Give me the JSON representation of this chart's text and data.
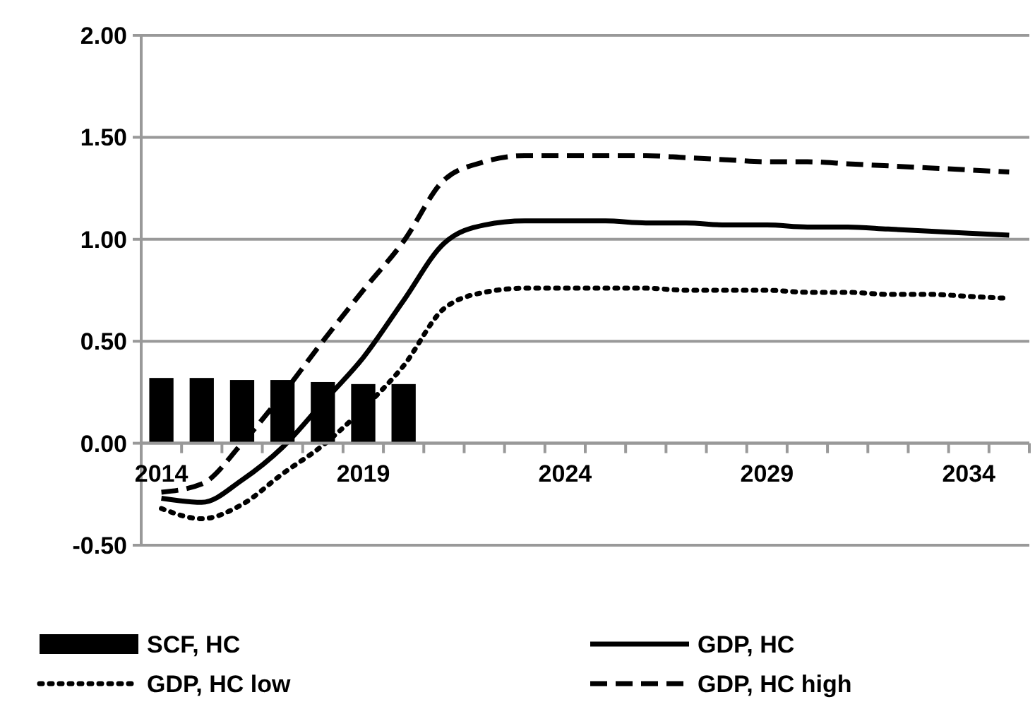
{
  "chart_data": {
    "type": "line",
    "categories": [
      "2014",
      null,
      null,
      null,
      null,
      "2019",
      null,
      null,
      null,
      null,
      "2024",
      null,
      null,
      null,
      null,
      "2029",
      null,
      null,
      null,
      null,
      "2034",
      null
    ],
    "series": [
      {
        "name": "SCF, HC",
        "type": "bar",
        "color": "#000000",
        "values": [
          0.32,
          0.32,
          0.31,
          0.31,
          0.3,
          0.29,
          0.29,
          null,
          null,
          null,
          null,
          null,
          null,
          null,
          null,
          null,
          null,
          null,
          null,
          null,
          null,
          null
        ]
      },
      {
        "name": "GDP, HC",
        "color": "#000000",
        "line_style": "solid",
        "values": [
          -0.27,
          -0.29,
          -0.18,
          -0.02,
          0.2,
          0.42,
          0.7,
          0.98,
          1.07,
          1.09,
          1.09,
          1.09,
          1.08,
          1.08,
          1.07,
          1.07,
          1.06,
          1.06,
          1.05,
          1.04,
          1.03,
          1.02
        ]
      },
      {
        "name": "GDP, HC low",
        "color": "#000000",
        "line_style": "dotted",
        "values": [
          -0.32,
          -0.37,
          -0.3,
          -0.15,
          -0.01,
          0.17,
          0.38,
          0.66,
          0.74,
          0.76,
          0.76,
          0.76,
          0.76,
          0.75,
          0.75,
          0.75,
          0.74,
          0.74,
          0.73,
          0.73,
          0.72,
          0.71
        ]
      },
      {
        "name": "GDP, HC high",
        "color": "#000000",
        "line_style": "dashed",
        "values": [
          -0.24,
          -0.2,
          0.0,
          0.24,
          0.5,
          0.75,
          0.99,
          1.29,
          1.38,
          1.41,
          1.41,
          1.41,
          1.41,
          1.4,
          1.39,
          1.38,
          1.38,
          1.37,
          1.36,
          1.35,
          1.34,
          1.33
        ]
      }
    ],
    "ylim": [
      -0.5,
      2.0
    ],
    "yticks": [
      {
        "value": -0.5,
        "label": "-0.50"
      },
      {
        "value": 0,
        "label": "0.00"
      },
      {
        "value": 0.5,
        "label": "0.50"
      },
      {
        "value": 1,
        "label": "1.00"
      },
      {
        "value": 1.5,
        "label": "1.50"
      },
      {
        "value": 2,
        "label": "2.00"
      }
    ],
    "grid": "y",
    "legend": "bottom"
  }
}
